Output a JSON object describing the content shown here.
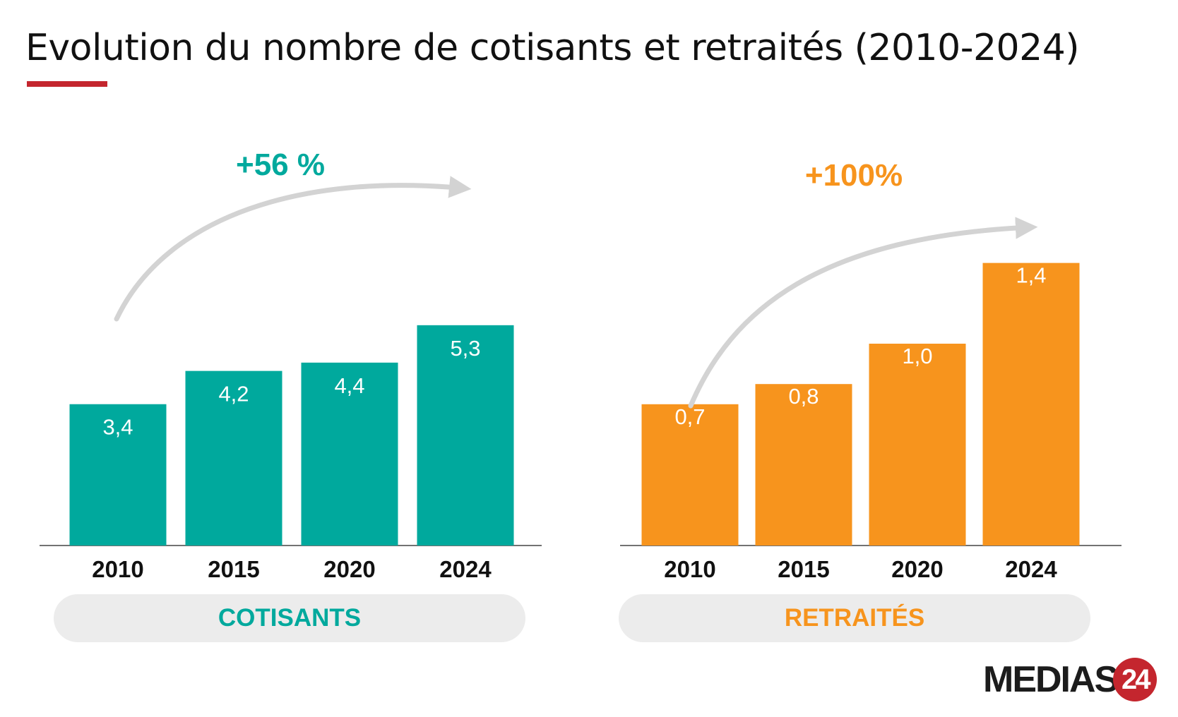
{
  "title": "Evolution du nombre de cotisants et retraités (2010-2024)",
  "colors": {
    "accent_red": "#c4262e",
    "teal": "#00a99d",
    "orange": "#f7941d",
    "arrow": "#d3d3d3"
  },
  "logo": {
    "text": "MEDIAS",
    "badge": "24"
  },
  "chart_data": [
    {
      "type": "bar",
      "categories": [
        "2010",
        "2015",
        "2020",
        "2024"
      ],
      "values": [
        3.4,
        4.2,
        4.4,
        5.3
      ],
      "value_labels": [
        "3,4",
        "4,2",
        "4,4",
        "5,3"
      ],
      "label": "COTISANTS",
      "growth": "+56 %",
      "color": "#00a99d"
    },
    {
      "type": "bar",
      "categories": [
        "2010",
        "2015",
        "2020",
        "2024"
      ],
      "values": [
        0.7,
        0.8,
        1.0,
        1.4
      ],
      "value_labels": [
        "0,7",
        "0,8",
        "1,0",
        "1,4"
      ],
      "label": "RETRAITÉS",
      "growth": "+100%",
      "color": "#f7941d"
    }
  ]
}
